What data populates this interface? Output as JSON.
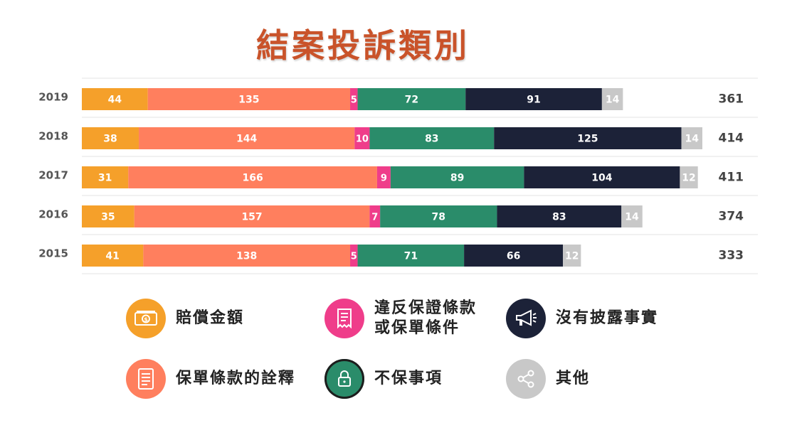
{
  "title": "結案投訴類別",
  "chart_data": {
    "type": "bar",
    "orientation": "horizontal",
    "stacked": true,
    "categories": [
      "2019",
      "2018",
      "2017",
      "2016",
      "2015"
    ],
    "series": [
      {
        "name": "賠償金額",
        "color": "#f5a02a",
        "values": [
          44,
          38,
          31,
          35,
          41
        ]
      },
      {
        "name": "保單條款的詮釋",
        "color": "#ff7f5e",
        "values": [
          135,
          144,
          166,
          157,
          138
        ]
      },
      {
        "name": "違反保證條款或保單條件",
        "color": "#ef3d8a",
        "values": [
          5,
          10,
          9,
          7,
          5
        ]
      },
      {
        "name": "不保事項",
        "color": "#2a8c6a",
        "values": [
          72,
          83,
          89,
          78,
          71
        ]
      },
      {
        "name": "沒有披露事實",
        "color": "#1c2238",
        "values": [
          91,
          125,
          104,
          83,
          66
        ]
      },
      {
        "name": "其他",
        "color": "#c8c8c8",
        "values": [
          14,
          14,
          12,
          14,
          12
        ]
      }
    ],
    "totals": [
      361,
      414,
      411,
      374,
      333
    ],
    "xlim": [
      0,
      414
    ],
    "grid": true,
    "legend_position": "bottom"
  },
  "legend": [
    {
      "label": "賠償金額",
      "icon": "money-icon",
      "color": "#f5a02a"
    },
    {
      "label": "違反保證條款\n或保單條件",
      "icon": "receipt-icon",
      "color": "#ef3d8a"
    },
    {
      "label": "沒有披露事實",
      "icon": "megaphone-icon",
      "color": "#1c2238"
    },
    {
      "label": "保單條款的詮釋",
      "icon": "document-icon",
      "color": "#ff7f5e"
    },
    {
      "label": "不保事項",
      "icon": "lock-icon",
      "color": "#2a8c6a"
    },
    {
      "label": "其他",
      "icon": "share-icon",
      "color": "#c8c8c8"
    }
  ]
}
